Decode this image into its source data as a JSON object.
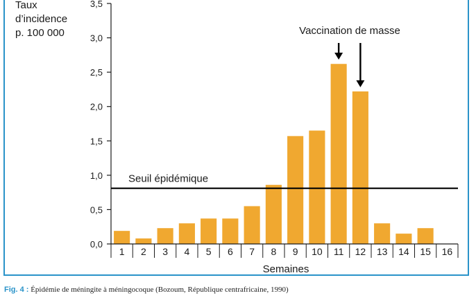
{
  "chart_data": {
    "type": "bar",
    "ylabel_lines": [
      "Taux",
      "d’incidence",
      "p. 100 000"
    ],
    "xlabel": "Semaines",
    "categories": [
      "1",
      "2",
      "3",
      "4",
      "5",
      "6",
      "7",
      "8",
      "9",
      "10",
      "11",
      "12",
      "13",
      "14",
      "15",
      "16"
    ],
    "values": [
      0.19,
      0.08,
      0.23,
      0.3,
      0.37,
      0.37,
      0.55,
      0.86,
      1.57,
      1.65,
      2.62,
      2.22,
      0.3,
      0.15,
      0.23,
      0
    ],
    "ylim": [
      0,
      3.5
    ],
    "yticks": [
      "0,0",
      "0,5",
      "1,0",
      "1,5",
      "2,0",
      "2,5",
      "3,0",
      "3,5"
    ],
    "threshold": {
      "value": 0.8,
      "label": "Seuil épidémique"
    },
    "annotation": {
      "label": "Vaccination de masse",
      "arrow_weeks": [
        "11",
        "12"
      ]
    },
    "bar_color": "#f0a830",
    "grid": false
  },
  "caption": {
    "prefix": "Fig. 4 :",
    "text": "Épidémie de méningite à méningocoque (Bozoum, République centrafricaine, 1990)"
  },
  "colors": {
    "frame": "#2a93c9",
    "text": "#1a1a1a"
  }
}
